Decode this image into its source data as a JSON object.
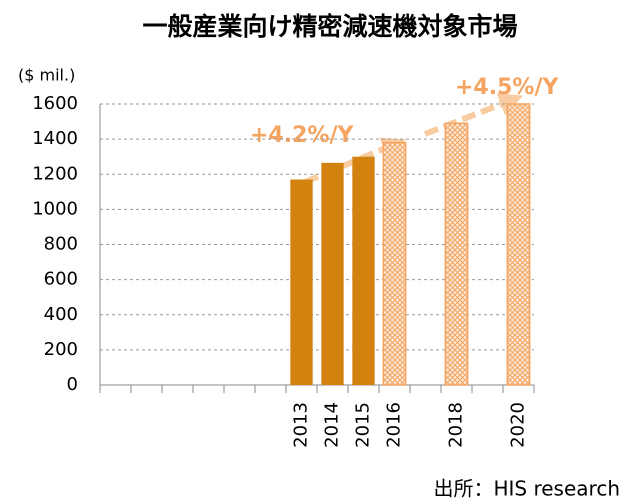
{
  "chart_data": {
    "type": "bar",
    "title": "一般産業向け精密減速機対象市場",
    "y_label": "($ mil.)",
    "source": "出所：HIS research",
    "categories": [
      null,
      null,
      null,
      null,
      null,
      null,
      "2013",
      "2014",
      "2015",
      "2016",
      null,
      "2018",
      null,
      "2020"
    ],
    "series": [
      {
        "color": "#d4820f",
        "pattern": "solid",
        "values": [
          null,
          null,
          null,
          null,
          null,
          null,
          1170,
          1265,
          1300,
          null,
          null,
          null,
          null,
          null
        ]
      },
      {
        "color": "#f4a460",
        "pattern": "crosshatch",
        "values": [
          null,
          null,
          null,
          null,
          null,
          null,
          null,
          null,
          null,
          1380,
          null,
          1490,
          null,
          1600
        ]
      }
    ],
    "ylim": [
      0,
      1600
    ],
    "yticks": [
      0,
      200,
      400,
      600,
      800,
      1000,
      1200,
      1400,
      1600
    ],
    "grid": true,
    "annotations": [
      "+4.2%/Y",
      "+4.5%/Y"
    ]
  }
}
